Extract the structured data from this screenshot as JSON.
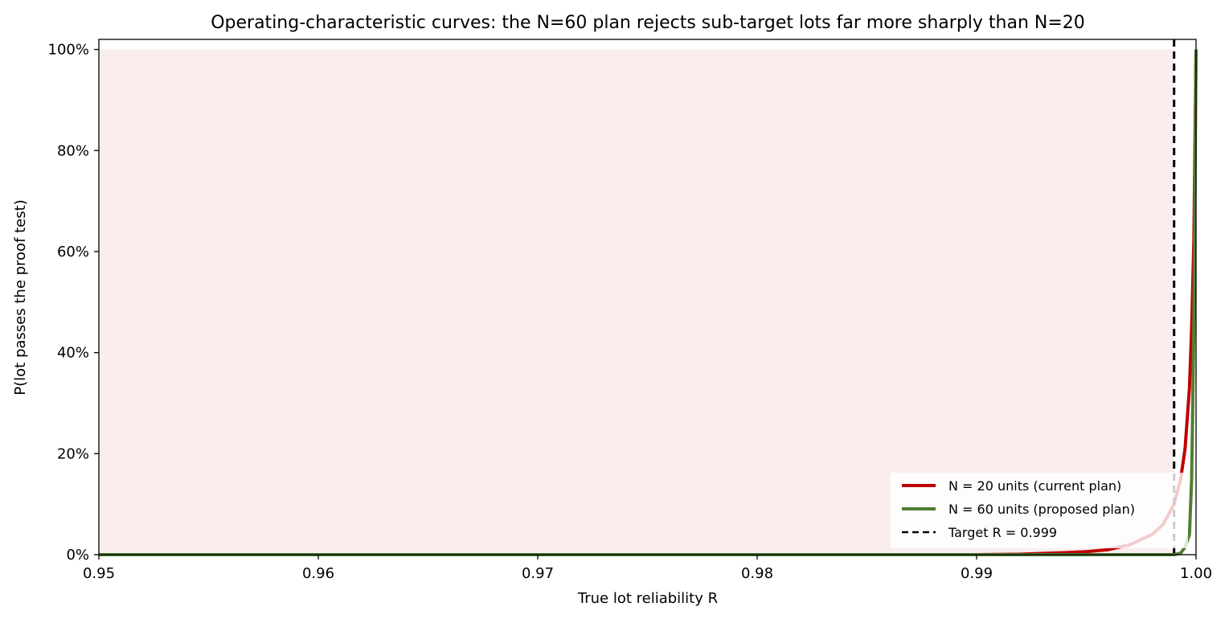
{
  "chart_data": {
    "type": "line",
    "title": "Operating-characteristic curves: the N=60 plan rejects sub-target lots far more sharply than N=20",
    "xlabel": "True lot reliability  R",
    "ylabel": "P(lot passes the proof test)",
    "xlim": [
      0.95,
      1.0
    ],
    "ylim": [
      0,
      1.02
    ],
    "x_ticks": [
      0.95,
      0.96,
      0.97,
      0.98,
      0.99,
      1.0
    ],
    "x_tick_labels": [
      "0.95",
      "0.96",
      "0.97",
      "0.98",
      "0.99",
      "1.00"
    ],
    "y_ticks": [
      0,
      0.2,
      0.4,
      0.6,
      0.8,
      1.0
    ],
    "y_tick_labels": [
      "0%",
      "20%",
      "40%",
      "60%",
      "80%",
      "100%"
    ],
    "grid": false,
    "legend_position": "lower-right",
    "shaded_region": {
      "x": [
        0.95,
        0.999
      ],
      "y": [
        0,
        1.0
      ],
      "color": "#f9eded"
    },
    "target_line": {
      "x": 0.999,
      "label": "Target R = 0.999",
      "color": "#000000",
      "style": "dashed"
    },
    "series": [
      {
        "name": "N = 20 units (current plan)",
        "color": "#c00000",
        "x": [
          0.95,
          0.96,
          0.97,
          0.98,
          0.985,
          0.99,
          0.992,
          0.994,
          0.995,
          0.996,
          0.997,
          0.9975,
          0.998,
          0.9985,
          0.999,
          0.9993,
          0.9995,
          0.9997,
          0.9998,
          0.9999,
          1.0
        ],
        "y": [
          0.0,
          0.0,
          0.0,
          0.0,
          0.0,
          0.0,
          0.001,
          0.004,
          0.006,
          0.01,
          0.02,
          0.03,
          0.04,
          0.06,
          0.1,
          0.15,
          0.21,
          0.33,
          0.45,
          0.62,
          1.0
        ]
      },
      {
        "name": "N = 60 units (proposed plan)",
        "color": "#507e32",
        "x": [
          0.95,
          0.96,
          0.97,
          0.98,
          0.99,
          0.995,
          0.998,
          0.999,
          0.9993,
          0.9995,
          0.9997,
          0.9998,
          0.9999,
          1.0
        ],
        "y": [
          0.0,
          0.0,
          0.0,
          0.0,
          0.0,
          0.0,
          0.0,
          0.0,
          0.003,
          0.015,
          0.04,
          0.15,
          0.45,
          1.0
        ]
      }
    ]
  }
}
